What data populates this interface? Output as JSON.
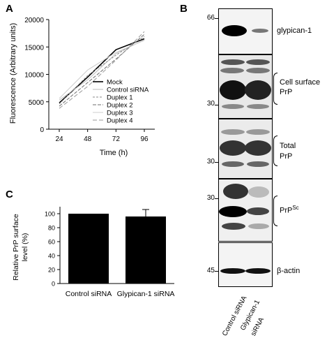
{
  "panels": {
    "a": "A",
    "b": "B",
    "c": "C"
  },
  "chart_data": [
    {
      "type": "line",
      "panel": "A",
      "xlabel": "Time (h)",
      "ylabel": "Fluorescence (Arbitrary units)",
      "x": [
        24,
        48,
        72,
        96
      ],
      "ylim": [
        0,
        20000
      ],
      "yticks": [
        "0",
        "5000",
        "10000",
        "15000",
        "20000"
      ],
      "xticks": [
        "24",
        "48",
        "72",
        "96"
      ],
      "legend_position": "bottom-right",
      "series": [
        {
          "name": "Mock",
          "values": [
            4800,
            9500,
            14500,
            16500
          ],
          "color": "#000000",
          "dash": ""
        },
        {
          "name": "Control siRNA",
          "values": [
            5300,
            9000,
            13800,
            16300
          ],
          "color": "#bdbdbd",
          "dash": ""
        },
        {
          "name": "Duplex 1",
          "values": [
            4600,
            9800,
            13500,
            16900
          ],
          "color": "#8a8a8a",
          "dash": "3,2"
        },
        {
          "name": "Duplex 2",
          "values": [
            4200,
            8500,
            12800,
            17300
          ],
          "color": "#6e6e6e",
          "dash": "5,2"
        },
        {
          "name": "Duplex 3",
          "values": [
            5600,
            10800,
            14000,
            16200
          ],
          "color": "#cccccc",
          "dash": ""
        },
        {
          "name": "Duplex 4",
          "values": [
            3800,
            7800,
            12600,
            17800
          ],
          "color": "#9a9a9a",
          "dash": "6,3"
        }
      ]
    },
    {
      "type": "bar",
      "panel": "C",
      "categories": [
        "Control siRNA",
        "Glypican-1 siRNA"
      ],
      "values": [
        100,
        96
      ],
      "errors": [
        0,
        10
      ],
      "ylabel": "Relative PrP surface level (%)",
      "ylim": [
        0,
        110
      ],
      "yticks": [
        "0",
        "20",
        "40",
        "60",
        "80",
        "100"
      ]
    }
  ],
  "blot": {
    "rows": [
      {
        "label": "glypican-1",
        "marker": "66"
      },
      {
        "label": "Cell surface PrP",
        "label_line1": "Cell surface",
        "label_line2": "PrP",
        "marker": "30"
      },
      {
        "label": "Total PrP",
        "label_line1": "Total",
        "label_line2": "PrP",
        "marker": "30"
      },
      {
        "label": "PrPSc",
        "label_main": "PrP",
        "label_sup": "Sc",
        "marker": "30"
      },
      {
        "label": "β-actin",
        "marker": "45"
      }
    ],
    "lanes": [
      "Control siRNA",
      "Glypican-1 siRNA"
    ],
    "lane_label_line1": "Glypican-1",
    "lane_label_line2": "siRNA"
  }
}
